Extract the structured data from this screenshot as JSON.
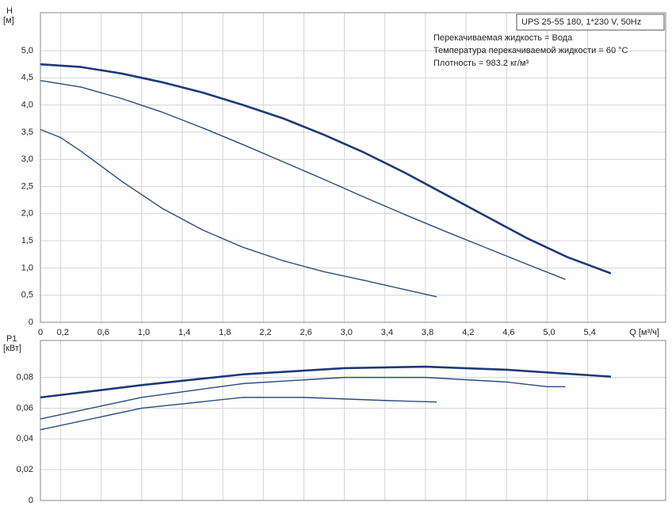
{
  "chart_data": [
    {
      "type": "line",
      "ylabel": "H",
      "yunit": "[м]",
      "xlabel": "Q [м³/ч]",
      "annotations": {
        "box": "UPS 25-55 180, 1*230 V, 50Hz",
        "lines": [
          "Перекачиваемая жидкость = Вода",
          "Температура перекачиваемой жидкости = 60 °C",
          "Плотность = 983.2 кг/м³"
        ]
      },
      "xlim": [
        0,
        6.17
      ],
      "ylim": [
        0,
        5.7
      ],
      "grid": true,
      "xticks": [
        0,
        {
          "value": 0.2,
          "label": "0,2"
        },
        {
          "value": 0.6,
          "label": "0,6"
        },
        {
          "value": 1.0,
          "label": "1,0"
        },
        {
          "value": 1.4,
          "label": "1,4"
        },
        {
          "value": 1.8,
          "label": "1,8"
        },
        {
          "value": 2.2,
          "label": "2,2"
        },
        {
          "value": 2.6,
          "label": "2,6"
        },
        {
          "value": 3.0,
          "label": "3,0"
        },
        {
          "value": 3.4,
          "label": "3,4"
        },
        {
          "value": 3.8,
          "label": "3,8"
        },
        {
          "value": 4.2,
          "label": "4,2"
        },
        {
          "value": 4.6,
          "label": "4,6"
        },
        {
          "value": 5.0,
          "label": "5,0"
        },
        {
          "value": 5.4,
          "label": "5,4"
        }
      ],
      "yticks": [
        0,
        {
          "value": 0.5,
          "label": "0,5"
        },
        {
          "value": 1.0,
          "label": "1,0"
        },
        {
          "value": 1.5,
          "label": "1,5"
        },
        {
          "value": 2.0,
          "label": "2,0"
        },
        {
          "value": 2.5,
          "label": "2,5"
        },
        {
          "value": 3.0,
          "label": "3,0"
        },
        {
          "value": 3.5,
          "label": "3,5"
        },
        {
          "value": 4.0,
          "label": "4,0"
        },
        {
          "value": 4.5,
          "label": "4,5"
        },
        {
          "value": 5.0,
          "label": "5,0"
        }
      ],
      "series": [
        {
          "color": "#1c3a78",
          "x": [
            0,
            0.4,
            0.8,
            1.2,
            1.6,
            2.0,
            2.4,
            2.8,
            3.2,
            3.6,
            4.0,
            4.4,
            4.8,
            5.2,
            5.63
          ],
          "values": [
            4.75,
            4.7,
            4.58,
            4.42,
            4.23,
            4.0,
            3.75,
            3.45,
            3.12,
            2.75,
            2.35,
            1.95,
            1.55,
            1.2,
            0.9
          ]
        },
        {
          "color": "#2a4b80",
          "x": [
            0,
            0.4,
            0.8,
            1.2,
            1.6,
            2.0,
            2.4,
            2.8,
            3.2,
            3.6,
            4.0,
            4.4,
            4.8,
            5.18
          ],
          "values": [
            4.45,
            4.33,
            4.12,
            3.87,
            3.58,
            3.27,
            2.95,
            2.63,
            2.3,
            1.98,
            1.67,
            1.37,
            1.07,
            0.79
          ]
        },
        {
          "color": "#2a4b80",
          "x": [
            0,
            0.2,
            0.4,
            0.8,
            1.2,
            1.6,
            2.0,
            2.4,
            2.8,
            3.2,
            3.6,
            3.91
          ],
          "values": [
            3.55,
            3.4,
            3.15,
            2.6,
            2.1,
            1.7,
            1.38,
            1.13,
            0.93,
            0.77,
            0.6,
            0.47
          ]
        }
      ]
    },
    {
      "type": "line",
      "ylabel": "P1",
      "yunit": "[кВт]",
      "xlim": [
        0,
        6.17
      ],
      "ylim": [
        0,
        0.104
      ],
      "grid": true,
      "xticks": [
        0,
        0.2,
        0.6,
        1.0,
        1.4,
        1.8,
        2.2,
        2.6,
        3.0,
        3.4,
        3.8,
        4.2,
        4.6,
        5.0,
        5.4
      ],
      "yticks": [
        0,
        {
          "value": 0.02,
          "label": "0,02"
        },
        {
          "value": 0.04,
          "label": "0,04"
        },
        {
          "value": 0.06,
          "label": "0,06"
        },
        {
          "value": 0.08,
          "label": "0,08"
        }
      ],
      "series": [
        {
          "color": "#1c3a78",
          "x": [
            0,
            1.0,
            2.0,
            3.0,
            3.8,
            4.6,
            5.63
          ],
          "values": [
            0.067,
            0.075,
            0.082,
            0.086,
            0.087,
            0.085,
            0.0805
          ]
        },
        {
          "color": "#2a4b80",
          "x": [
            0,
            1.0,
            2.0,
            3.0,
            3.8,
            4.6,
            5.0,
            5.18
          ],
          "values": [
            0.053,
            0.067,
            0.076,
            0.08,
            0.08,
            0.077,
            0.074,
            0.074
          ]
        },
        {
          "color": "#2a4b80",
          "x": [
            0,
            1.0,
            2.0,
            2.6,
            3.4,
            3.91
          ],
          "values": [
            0.046,
            0.06,
            0.067,
            0.067,
            0.065,
            0.064
          ]
        }
      ]
    }
  ]
}
